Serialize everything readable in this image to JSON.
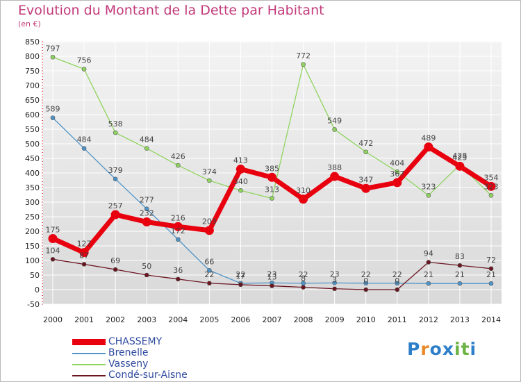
{
  "header": {
    "title": "Evolution du Montant de la Dette par Habitant",
    "unit": "(en €)"
  },
  "logo": {
    "text": "Proxiti",
    "colors": [
      "#2e7fc9",
      "#e8892a",
      "#2e7fc9",
      "#2e7fc9",
      "#6ab344",
      "#6ab344",
      "#2e7fc9"
    ]
  },
  "chart_data": {
    "type": "line",
    "title": "Evolution du Montant de la Dette par Habitant",
    "ylabel": "(en €)",
    "xlabel": "",
    "x": [
      "2000",
      "2001",
      "2002",
      "2003",
      "2004",
      "2005",
      "2006",
      "2007",
      "2008",
      "2009",
      "2010",
      "2011",
      "2012",
      "2013",
      "2014"
    ],
    "ylim": [
      -50,
      850
    ],
    "yticks": [
      -50,
      0,
      50,
      100,
      150,
      200,
      250,
      300,
      350,
      400,
      450,
      500,
      550,
      600,
      650,
      700,
      750,
      800,
      850
    ],
    "grid": true,
    "legend_position": "bottom-left",
    "series": [
      {
        "name": "CHASSEMY",
        "color": "#e8000f",
        "emphasis": true,
        "values": [
          175,
          127,
          257,
          232,
          216,
          203,
          413,
          385,
          310,
          388,
          347,
          367,
          489,
          423,
          354
        ]
      },
      {
        "name": "Brenelle",
        "color": "#4f94c8",
        "emphasis": false,
        "values": [
          589,
          484,
          379,
          277,
          172,
          66,
          22,
          23,
          22,
          23,
          22,
          22,
          21,
          21,
          21
        ]
      },
      {
        "name": "Vasseny",
        "color": "#8fd45e",
        "emphasis": false,
        "values": [
          797,
          756,
          538,
          484,
          426,
          374,
          340,
          313,
          772,
          549,
          472,
          404,
          323,
          428,
          323
        ]
      },
      {
        "name": "Condé-sur-Aisne",
        "color": "#6b1520",
        "emphasis": false,
        "values": [
          104,
          87,
          69,
          50,
          36,
          22,
          17,
          13,
          8,
          3,
          0,
          0,
          94,
          83,
          72
        ]
      }
    ]
  }
}
